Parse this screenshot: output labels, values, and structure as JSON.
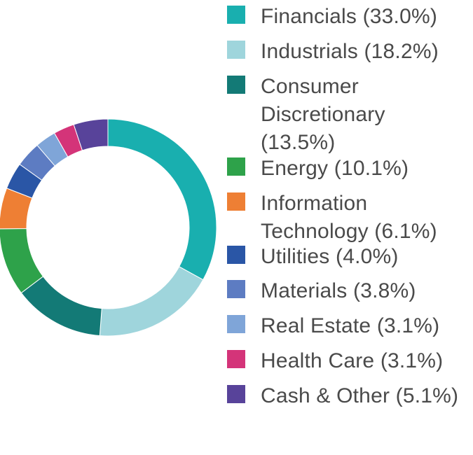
{
  "chart_data": {
    "type": "pie",
    "style": "donut",
    "legend_position": "right",
    "slices": [
      {
        "label": "Financials (33.0%)",
        "value": 33.0,
        "color": "#19afaf"
      },
      {
        "label": "Industrials (18.2%)",
        "value": 18.2,
        "color": "#9fd5dc"
      },
      {
        "label": "Consumer Discretionary (13.5%)",
        "value": 13.5,
        "color": "#137a76"
      },
      {
        "label": "Energy (10.1%)",
        "value": 10.1,
        "color": "#2ea24a"
      },
      {
        "label": "Information Technology (6.1%)",
        "value": 6.1,
        "color": "#ee7f34"
      },
      {
        "label": "Utilities (4.0%)",
        "value": 4.0,
        "color": "#2a56a6"
      },
      {
        "label": "Materials (3.8%)",
        "value": 3.8,
        "color": "#5d7cc2"
      },
      {
        "label": "Real Estate (3.1%)",
        "value": 3.1,
        "color": "#7fa5d8"
      },
      {
        "label": "Health Care (3.1%)",
        "value": 3.1,
        "color": "#d43479"
      },
      {
        "label": "Cash & Other (5.1%)",
        "value": 5.1,
        "color": "#58439a"
      }
    ]
  }
}
